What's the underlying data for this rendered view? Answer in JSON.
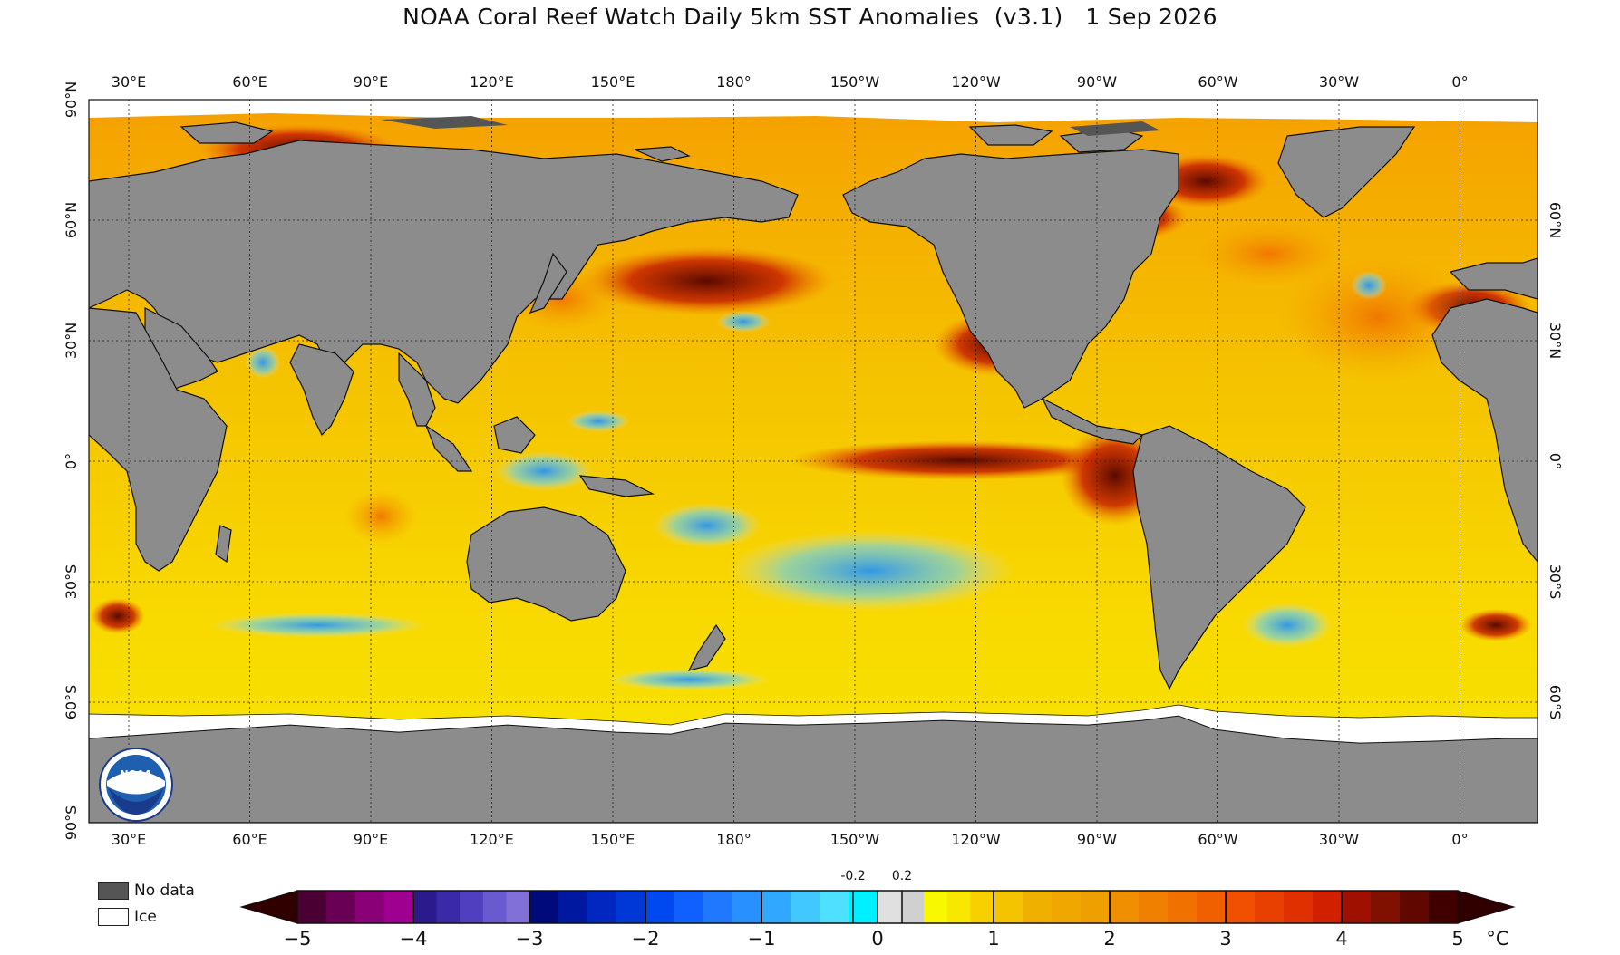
{
  "title": "NOAA Coral Reef Watch Daily 5km SST Anomalies  (v3.1)   1 Sep 2026",
  "map": {
    "lon_labels_top": [
      "30°E",
      "60°E",
      "90°E",
      "120°E",
      "150°E",
      "180°",
      "150°W",
      "120°W",
      "90°W",
      "60°W",
      "30°W",
      "0°"
    ],
    "lon_labels_bottom": [
      "30°E",
      "60°E",
      "90°E",
      "120°E",
      "150°E",
      "180°",
      "150°W",
      "120°W",
      "90°W",
      "60°W",
      "30°W",
      "0°"
    ],
    "lat_labels_left": [
      "90°N",
      "60°N",
      "30°N",
      "0°",
      "30°S",
      "60°S",
      "90°S"
    ],
    "lat_labels_right": [
      "60°N",
      "30°N",
      "0°",
      "30°S",
      "60°S"
    ],
    "colors": {
      "land": "#8c8c8c",
      "no_data": "#555555",
      "ice": "#ffffff",
      "grid": "#222222"
    },
    "logo_icon": "noaa-logo"
  },
  "legend": {
    "no_data_label": "No data",
    "ice_label": "Ice"
  },
  "colorbar": {
    "unit": "°C",
    "ticks": [
      "−5",
      "−4",
      "−3",
      "−2",
      "−1",
      "0",
      "1",
      "2",
      "3",
      "4",
      "5"
    ],
    "neutral_ticks": [
      "-0.2",
      "0.2"
    ],
    "stops": [
      "#300000",
      "#5a0b5a",
      "#9b1c9b",
      "#3a3aa8",
      "#8080d0",
      "#0a1a8c",
      "#1040d0",
      "#1e60ff",
      "#3aa8ff",
      "#00e0ff",
      "#e0e0e0",
      "#f8f800",
      "#f5c800",
      "#f0a000",
      "#f07800",
      "#f04000",
      "#c81000",
      "#700000",
      "#300000"
    ]
  }
}
